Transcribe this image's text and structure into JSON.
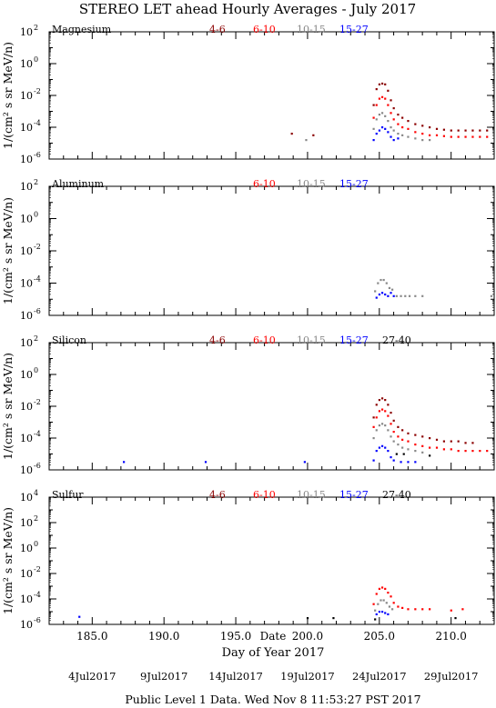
{
  "page": {
    "title": "STEREO LET ahead Hourly Averages - July 2017",
    "xlabel": "Day of Year 2017",
    "date_label": "Date",
    "date_ticks": [
      {
        "label": "4Jul2017",
        "doy": 185
      },
      {
        "label": "9Jul2017",
        "doy": 190
      },
      {
        "label": "14Jul2017",
        "doy": 195
      },
      {
        "label": "19Jul2017",
        "doy": 200
      },
      {
        "label": "24Jul2017",
        "doy": 205
      },
      {
        "label": "29Jul2017",
        "doy": 210
      }
    ],
    "footer": "Public Level 1 Data. Wed Nov  8 11:53:27 PST 2017",
    "ylabel": "1/(cm² s sr MeV/n)"
  },
  "colors": {
    "4-6": "#8b0000",
    "6-10": "#ff0000",
    "10-15": "#888888",
    "15-27": "#0000ff",
    "27-40": "#000000"
  },
  "chart_data": [
    {
      "type": "scatter",
      "element": "Magnesium",
      "xlim": [
        182,
        213
      ],
      "ylim_exp": [
        -6,
        2
      ],
      "yscale": "log",
      "legend": [
        "4-6",
        "6-10",
        "10-15",
        "15-27"
      ],
      "series": [
        {
          "name": "4-6",
          "points": [
            [
              198.9,
              -4.4
            ],
            [
              200.4,
              -4.5
            ],
            [
              204.6,
              -2.6
            ],
            [
              204.8,
              -1.6
            ],
            [
              205.0,
              -1.3
            ],
            [
              205.2,
              -1.25
            ],
            [
              205.4,
              -1.3
            ],
            [
              205.6,
              -1.7
            ],
            [
              205.8,
              -2.3
            ],
            [
              206.0,
              -2.8
            ],
            [
              206.3,
              -3.2
            ],
            [
              206.6,
              -3.4
            ],
            [
              207.0,
              -3.6
            ],
            [
              207.5,
              -3.8
            ],
            [
              208.0,
              -3.9
            ],
            [
              208.5,
              -4.0
            ],
            [
              209.0,
              -4.1
            ],
            [
              209.5,
              -4.15
            ],
            [
              210.0,
              -4.2
            ],
            [
              210.5,
              -4.2
            ],
            [
              211.0,
              -4.2
            ],
            [
              211.5,
              -4.2
            ],
            [
              212.0,
              -4.2
            ],
            [
              212.5,
              -4.2
            ]
          ]
        },
        {
          "name": "6-10",
          "points": [
            [
              204.6,
              -3.4
            ],
            [
              204.8,
              -2.6
            ],
            [
              205.0,
              -2.2
            ],
            [
              205.2,
              -2.1
            ],
            [
              205.4,
              -2.2
            ],
            [
              205.6,
              -2.6
            ],
            [
              205.8,
              -3.1
            ],
            [
              206.0,
              -3.5
            ],
            [
              206.3,
              -3.8
            ],
            [
              206.6,
              -4.0
            ],
            [
              207.0,
              -4.1
            ],
            [
              207.5,
              -4.3
            ],
            [
              208.0,
              -4.4
            ],
            [
              208.5,
              -4.5
            ],
            [
              209.0,
              -4.5
            ],
            [
              209.5,
              -4.55
            ],
            [
              210.0,
              -4.6
            ],
            [
              210.5,
              -4.6
            ],
            [
              211.0,
              -4.6
            ],
            [
              211.5,
              -4.6
            ],
            [
              212.0,
              -4.6
            ],
            [
              212.5,
              -4.6
            ]
          ]
        },
        {
          "name": "10-15",
          "points": [
            [
              199.9,
              -4.8
            ],
            [
              204.6,
              -4.1
            ],
            [
              204.8,
              -3.5
            ],
            [
              205.0,
              -3.2
            ],
            [
              205.2,
              -3.1
            ],
            [
              205.4,
              -3.3
            ],
            [
              205.6,
              -3.6
            ],
            [
              205.8,
              -4.0
            ],
            [
              206.0,
              -4.2
            ],
            [
              206.3,
              -4.4
            ],
            [
              206.6,
              -4.5
            ],
            [
              207.0,
              -4.6
            ],
            [
              207.5,
              -4.7
            ],
            [
              208.0,
              -4.8
            ],
            [
              208.5,
              -4.8
            ]
          ]
        },
        {
          "name": "15-27",
          "points": [
            [
              204.6,
              -4.8
            ],
            [
              204.8,
              -4.4
            ],
            [
              205.0,
              -4.2
            ],
            [
              205.2,
              -4.0
            ],
            [
              205.4,
              -4.1
            ],
            [
              205.6,
              -4.3
            ],
            [
              205.8,
              -4.6
            ],
            [
              206.0,
              -4.8
            ],
            [
              206.3,
              -4.7
            ]
          ]
        }
      ]
    },
    {
      "type": "scatter",
      "element": "Aluminum",
      "xlim": [
        182,
        213
      ],
      "ylim_exp": [
        -6,
        2
      ],
      "yscale": "log",
      "legend": [
        "6-10",
        "10-15",
        "15-27"
      ],
      "series": [
        {
          "name": "10-15",
          "points": [
            [
              204.7,
              -4.5
            ],
            [
              204.9,
              -4.0
            ],
            [
              205.1,
              -3.8
            ],
            [
              205.3,
              -3.8
            ],
            [
              205.5,
              -4.0
            ],
            [
              205.7,
              -4.3
            ],
            [
              205.9,
              -4.4
            ],
            [
              206.2,
              -4.8
            ],
            [
              206.5,
              -4.8
            ],
            [
              206.8,
              -4.8
            ],
            [
              207.1,
              -4.8
            ],
            [
              207.5,
              -4.8
            ],
            [
              208.0,
              -4.8
            ],
            [
              212.8,
              -4.8
            ]
          ]
        },
        {
          "name": "15-27",
          "points": [
            [
              204.8,
              -4.9
            ],
            [
              205.0,
              -4.7
            ],
            [
              205.2,
              -4.6
            ],
            [
              205.4,
              -4.7
            ],
            [
              205.6,
              -4.8
            ],
            [
              205.8,
              -4.6
            ],
            [
              206.0,
              -4.8
            ]
          ]
        }
      ]
    },
    {
      "type": "scatter",
      "element": "Silicon",
      "xlim": [
        182,
        213
      ],
      "ylim_exp": [
        -6,
        2
      ],
      "yscale": "log",
      "legend": [
        "4-6",
        "6-10",
        "10-15",
        "15-27",
        "27-40"
      ],
      "series": [
        {
          "name": "4-6",
          "points": [
            [
              204.6,
              -2.7
            ],
            [
              204.8,
              -1.9
            ],
            [
              205.0,
              -1.6
            ],
            [
              205.2,
              -1.5
            ],
            [
              205.4,
              -1.6
            ],
            [
              205.6,
              -1.9
            ],
            [
              205.8,
              -2.4
            ],
            [
              206.0,
              -2.9
            ],
            [
              206.3,
              -3.3
            ],
            [
              206.6,
              -3.5
            ],
            [
              207.0,
              -3.7
            ],
            [
              207.5,
              -3.8
            ],
            [
              208.0,
              -3.9
            ],
            [
              208.5,
              -4.0
            ],
            [
              209.0,
              -4.1
            ],
            [
              209.5,
              -4.2
            ],
            [
              210.0,
              -4.2
            ],
            [
              210.5,
              -4.2
            ],
            [
              211.0,
              -4.3
            ],
            [
              211.5,
              -4.3
            ]
          ]
        },
        {
          "name": "6-10",
          "points": [
            [
              204.6,
              -3.3
            ],
            [
              204.8,
              -2.7
            ],
            [
              205.0,
              -2.3
            ],
            [
              205.2,
              -2.2
            ],
            [
              205.4,
              -2.3
            ],
            [
              205.6,
              -2.6
            ],
            [
              205.8,
              -3.1
            ],
            [
              206.0,
              -3.6
            ],
            [
              206.3,
              -3.9
            ],
            [
              206.6,
              -4.1
            ],
            [
              207.0,
              -4.2
            ],
            [
              207.5,
              -4.4
            ],
            [
              208.0,
              -4.5
            ],
            [
              208.5,
              -4.6
            ],
            [
              209.0,
              -4.6
            ],
            [
              209.5,
              -4.7
            ],
            [
              210.0,
              -4.7
            ],
            [
              210.5,
              -4.8
            ],
            [
              211.0,
              -4.8
            ],
            [
              211.5,
              -4.8
            ],
            [
              212.0,
              -4.8
            ],
            [
              212.5,
              -4.8
            ]
          ]
        },
        {
          "name": "10-15",
          "points": [
            [
              204.6,
              -4.0
            ],
            [
              204.8,
              -3.5
            ],
            [
              205.0,
              -3.2
            ],
            [
              205.2,
              -3.1
            ],
            [
              205.4,
              -3.2
            ],
            [
              205.6,
              -3.5
            ],
            [
              205.8,
              -3.9
            ],
            [
              206.0,
              -4.2
            ],
            [
              206.3,
              -4.4
            ],
            [
              206.6,
              -4.6
            ],
            [
              207.0,
              -4.7
            ],
            [
              207.5,
              -4.8
            ],
            [
              208.0,
              -4.9
            ]
          ]
        },
        {
          "name": "15-27",
          "points": [
            [
              187.2,
              -5.5
            ],
            [
              192.9,
              -5.5
            ],
            [
              199.8,
              -5.5
            ],
            [
              204.6,
              -5.4
            ],
            [
              204.8,
              -4.8
            ],
            [
              205.0,
              -4.6
            ],
            [
              205.2,
              -4.5
            ],
            [
              205.4,
              -4.6
            ],
            [
              205.6,
              -4.8
            ],
            [
              205.8,
              -5.2
            ],
            [
              206.0,
              -5.4
            ],
            [
              206.5,
              -5.5
            ],
            [
              207.0,
              -5.5
            ],
            [
              207.5,
              -5.5
            ]
          ]
        },
        {
          "name": "27-40",
          "points": [
            [
              206.2,
              -5.0
            ],
            [
              206.7,
              -5.0
            ],
            [
              208.5,
              -5.1
            ]
          ]
        }
      ]
    },
    {
      "type": "scatter",
      "element": "Sulfur",
      "xlim": [
        182,
        213
      ],
      "ylim_exp": [
        -6,
        4
      ],
      "yscale": "log",
      "legend": [
        "4-6",
        "6-10",
        "10-15",
        "15-27",
        "27-40"
      ],
      "series": [
        {
          "name": "6-10",
          "points": [
            [
              204.6,
              -4.4
            ],
            [
              204.8,
              -3.6
            ],
            [
              205.0,
              -3.2
            ],
            [
              205.2,
              -3.1
            ],
            [
              205.4,
              -3.2
            ],
            [
              205.6,
              -3.5
            ],
            [
              205.8,
              -3.8
            ],
            [
              206.0,
              -4.3
            ],
            [
              206.3,
              -4.6
            ],
            [
              206.6,
              -4.7
            ],
            [
              207.0,
              -4.8
            ],
            [
              207.5,
              -4.8
            ],
            [
              208.0,
              -4.8
            ],
            [
              208.5,
              -4.8
            ],
            [
              210.0,
              -4.9
            ],
            [
              210.8,
              -4.8
            ]
          ]
        },
        {
          "name": "10-15",
          "points": [
            [
              204.7,
              -4.9
            ],
            [
              204.9,
              -4.4
            ],
            [
              205.1,
              -4.1
            ],
            [
              205.3,
              -4.1
            ],
            [
              205.5,
              -4.3
            ],
            [
              205.7,
              -4.6
            ],
            [
              205.9,
              -4.8
            ]
          ]
        },
        {
          "name": "15-27",
          "points": [
            [
              184.1,
              -5.4
            ],
            [
              204.8,
              -5.2
            ],
            [
              205.0,
              -5.0
            ],
            [
              205.2,
              -5.0
            ],
            [
              205.4,
              -5.1
            ],
            [
              205.6,
              -5.2
            ]
          ]
        },
        {
          "name": "27-40",
          "points": [
            [
              200.0,
              -5.5
            ],
            [
              201.8,
              -5.5
            ],
            [
              204.7,
              -5.6
            ],
            [
              210.3,
              -5.5
            ]
          ]
        }
      ]
    }
  ]
}
